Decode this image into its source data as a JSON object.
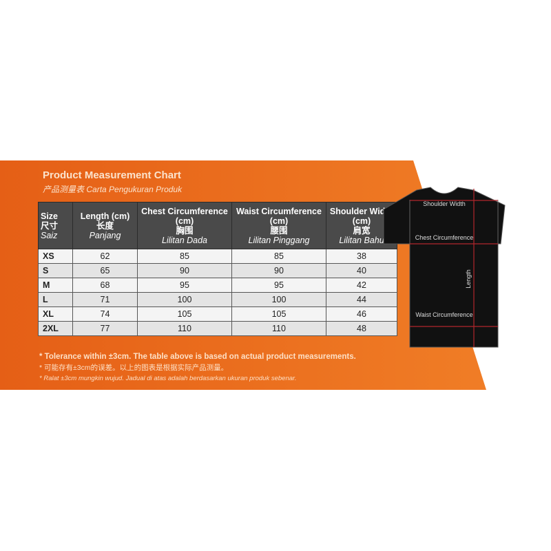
{
  "title": "Product Measurement Chart",
  "subtitle_zh": "产品测量表",
  "subtitle_ms": "Carta Pengukuran Produk",
  "colors": {
    "banner": "#e9671c",
    "header": "#4a4a4a",
    "shirt": "#111111",
    "guide": "#b3262c"
  },
  "table": {
    "headers": [
      {
        "en": "Size",
        "zh": "尺寸",
        "ms": "Saiz"
      },
      {
        "en": "Length (cm)",
        "zh": "长度",
        "ms": "Panjang"
      },
      {
        "en": "Chest Circumference (cm)",
        "zh": "胸围",
        "ms": "Lilitan Dada"
      },
      {
        "en": "Waist Circumference (cm)",
        "zh": "腰围",
        "ms": "Lilitan Pinggang"
      },
      {
        "en": "Shoulder Width (cm)",
        "zh": "肩宽",
        "ms": "Lilitan Bahu"
      }
    ],
    "rows": [
      [
        "XS",
        "62",
        "85",
        "85",
        "38"
      ],
      [
        "S",
        "65",
        "90",
        "90",
        "40"
      ],
      [
        "M",
        "68",
        "95",
        "95",
        "42"
      ],
      [
        "L",
        "71",
        "100",
        "100",
        "44"
      ],
      [
        "XL",
        "74",
        "105",
        "105",
        "46"
      ],
      [
        "2XL",
        "77",
        "110",
        "110",
        "48"
      ]
    ]
  },
  "notes": [
    "* Tolerance within ±3cm. The table above is based on actual product measurements.",
    "* 可能存有±3cm的误差。以上的图表是根据实际产品测量。",
    "* Ralat ±3cm mungkin wujud. Jadual di atas adalah berdasarkan ukuran produk sebenar."
  ],
  "diagram": {
    "shoulder": "Shoulder Width",
    "chest": "Chest Circumference",
    "length": "Length",
    "waist": "Waist Circumference"
  }
}
